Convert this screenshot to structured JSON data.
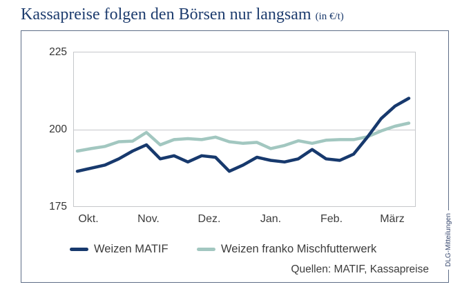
{
  "page": {
    "title": "Kassapreise folgen den Börsen nur langsam",
    "title_suffix": "(in €/t)",
    "source": "Quellen: MATIF, Kassapreise",
    "credit": "DLG-Mitteilungen"
  },
  "chart_data": {
    "type": "line",
    "title": "Kassapreise folgen den Börsen nur langsam",
    "unit": "€/t",
    "categories": [
      "Okt.",
      "Nov.",
      "Dez.",
      "Jan.",
      "Feb.",
      "März"
    ],
    "y_axis": {
      "ticks": [
        "225",
        "200",
        "175"
      ],
      "min": 175,
      "max": 225,
      "gridline_at": 200
    },
    "grid": "single horizontal gridline at 200, framed plot area",
    "legend_position": "bottom-left",
    "series": [
      {
        "name": "Weizen MATIF",
        "color": "#17396d",
        "values": [
          186.5,
          187.5,
          188.5,
          190.5,
          193,
          195,
          190.5,
          191.5,
          189.5,
          191.5,
          191,
          186.5,
          188.5,
          191,
          190,
          189.5,
          190.5,
          193.5,
          190.5,
          190,
          192,
          197.5,
          203.5,
          207.5,
          210
        ]
      },
      {
        "name": "Weizen franko Mischfutterwerk",
        "color": "#a2c7c0",
        "values": [
          193,
          193.8,
          194.5,
          196,
          196.2,
          199,
          195,
          196.7,
          197,
          196.7,
          197.5,
          196,
          195.5,
          195.8,
          193.8,
          194.8,
          196.3,
          195.5,
          196.5,
          196.7,
          196.7,
          197.6,
          199.5,
          201,
          202
        ]
      }
    ]
  },
  "colors": {
    "title": "#1d3c6e",
    "frame_border": "#5d6c86",
    "plot_border": "#c5c7ca",
    "label_text": "#3c3c3c"
  }
}
